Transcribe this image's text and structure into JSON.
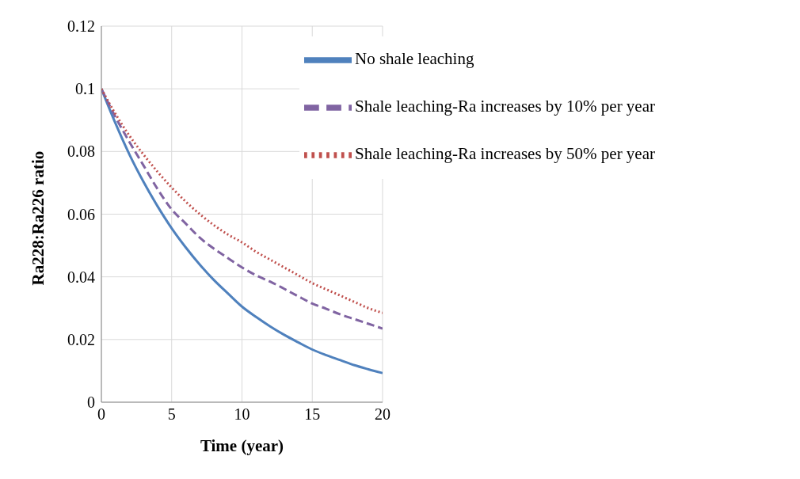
{
  "chart_data": {
    "type": "line",
    "xlabel": "Time (year)",
    "ylabel": "Ra228:Ra226 ratio",
    "x": [
      0,
      1,
      2,
      3,
      4,
      5,
      6,
      7,
      8,
      9,
      10,
      11,
      12,
      13,
      14,
      15,
      16,
      17,
      18,
      19,
      20
    ],
    "xlim": [
      0,
      20
    ],
    "xticks": [
      0,
      5,
      10,
      15,
      20
    ],
    "ylim": [
      0,
      0.12
    ],
    "yticks": [
      0,
      0.02,
      0.04,
      0.06,
      0.08,
      0.1,
      0.12
    ],
    "grid": true,
    "legend": "top right",
    "marker": "none",
    "series": [
      {
        "name": "No shale leaching",
        "color": "#4f81bd",
        "line_style": "solid",
        "values": [
          0.1,
          0.089,
          0.079,
          0.0703,
          0.0625,
          0.0555,
          0.0494,
          0.0439,
          0.039,
          0.0347,
          0.0305,
          0.0272,
          0.0242,
          0.0215,
          0.0191,
          0.0168,
          0.015,
          0.0134,
          0.0118,
          0.0105,
          0.0093
        ]
      },
      {
        "name": "Shale leaching-Ra increases by 10% per year",
        "color": "#8064a2",
        "line_style": "dashed",
        "values": [
          0.1,
          0.091,
          0.083,
          0.0755,
          0.068,
          0.0615,
          0.057,
          0.0525,
          0.049,
          0.046,
          0.043,
          0.0405,
          0.0385,
          0.0362,
          0.0338,
          0.0315,
          0.0298,
          0.028,
          0.0265,
          0.025,
          0.0235
        ]
      },
      {
        "name": "Shale leaching-Ra increases by 50% per year",
        "color": "#c0504d",
        "line_style": "dotted",
        "values": [
          0.1,
          0.092,
          0.085,
          0.079,
          0.0735,
          0.0685,
          0.064,
          0.06,
          0.0565,
          0.0535,
          0.051,
          0.048,
          0.0455,
          0.043,
          0.0405,
          0.038,
          0.036,
          0.034,
          0.032,
          0.03,
          0.0285
        ]
      }
    ]
  }
}
